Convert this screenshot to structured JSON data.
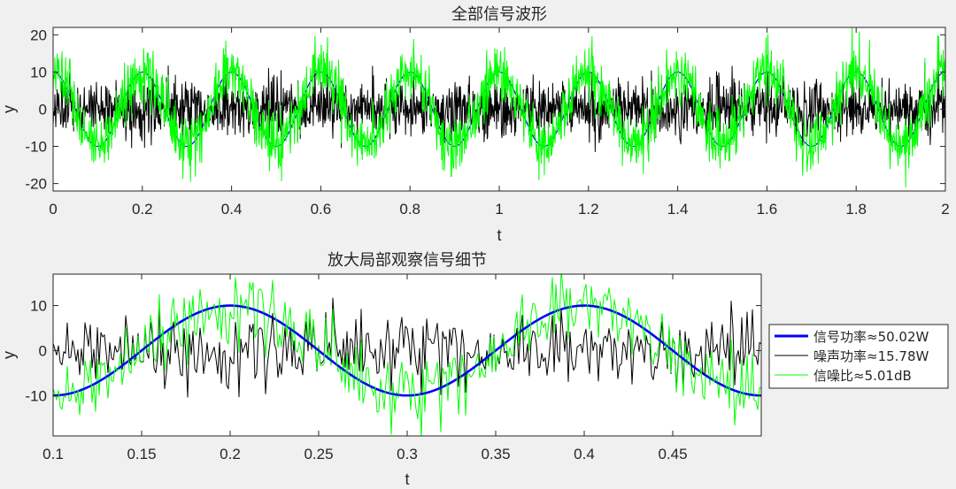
{
  "colors": {
    "figure_bg": "#f0f0f0",
    "axes_bg": "#ffffff",
    "axis_color": "#262626",
    "signal": "#0000ff",
    "noise": "#000000",
    "noisy_signal": "#00ff00"
  },
  "chart_data": [
    {
      "type": "line",
      "title": "全部信号波形",
      "xlabel": "t",
      "ylabel": "y",
      "xlim": [
        0,
        2
      ],
      "ylim": [
        -22,
        22
      ],
      "xticks": [
        0,
        0.2,
        0.4,
        0.6,
        0.8,
        1,
        1.2,
        1.4,
        1.6,
        1.8,
        2
      ],
      "xtick_labels": [
        "0",
        "0.2",
        "0.4",
        "0.6",
        "0.8",
        "1",
        "1.2",
        "1.4",
        "1.6",
        "1.8",
        "2"
      ],
      "yticks": [
        -20,
        -10,
        0,
        10,
        20
      ],
      "ytick_labels": [
        "-20",
        "-10",
        "0",
        "10",
        "20"
      ],
      "grid": false,
      "series": [
        {
          "name": "信号",
          "kind": "sine",
          "amplitude": 10,
          "frequency_hz": 5,
          "color": "#0000ff"
        },
        {
          "name": "噪声",
          "kind": "gaussian_noise",
          "rms": 3.97,
          "color": "#000000"
        },
        {
          "name": "信噪",
          "kind": "signal_plus_noise",
          "color": "#00ff00"
        }
      ]
    },
    {
      "type": "line",
      "title": "放大局部观察信号细节",
      "xlabel": "t",
      "ylabel": "y",
      "xlim": [
        0.1,
        0.5
      ],
      "ylim": [
        -19,
        17
      ],
      "xticks": [
        0.1,
        0.15,
        0.2,
        0.25,
        0.3,
        0.35,
        0.4,
        0.45
      ],
      "xtick_labels": [
        "0.1",
        "0.15",
        "0.2",
        "0.25",
        "0.3",
        "0.35",
        "0.4",
        "0.45"
      ],
      "yticks": [
        -10,
        0,
        10
      ],
      "ytick_labels": [
        "-10",
        "0",
        "10"
      ],
      "grid": false,
      "legend_position": "right",
      "legend": [
        {
          "label": "信号功率≈50.02W",
          "color": "#0000ff",
          "width": 3
        },
        {
          "label": "噪声功率≈15.78W",
          "color": "#000000",
          "width": 1
        },
        {
          "label": "信噪比≈5.01dB",
          "color": "#00ff00",
          "width": 1
        }
      ]
    }
  ]
}
